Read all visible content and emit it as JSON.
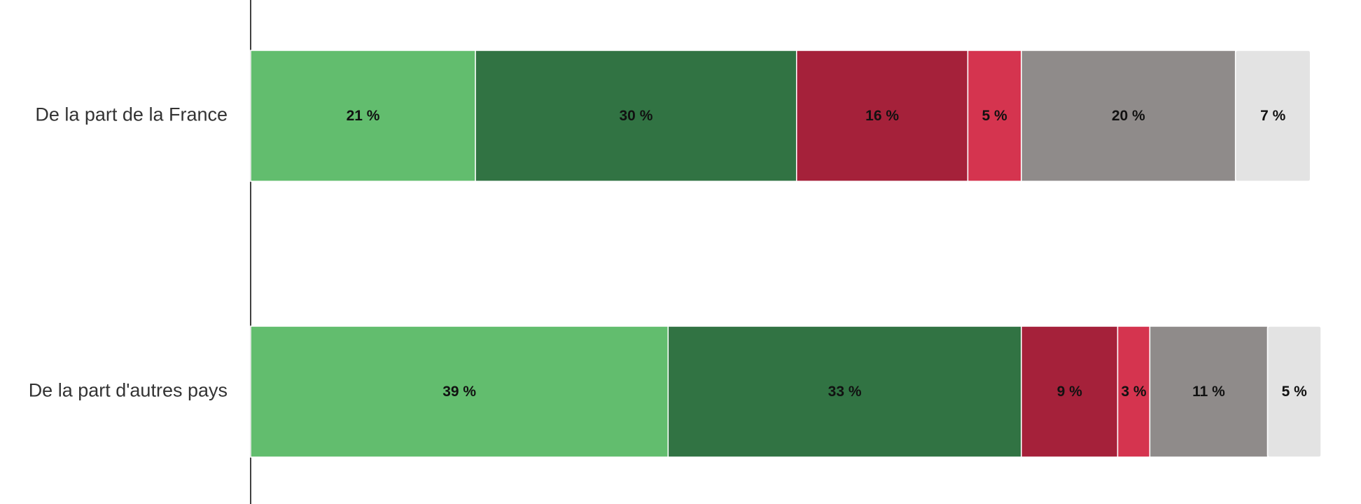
{
  "chart_data": {
    "type": "stacked-bar-horizontal",
    "categories": [
      "De la part de la France",
      "De la part d'autres pays"
    ],
    "series": [
      {
        "color": "#62bd6e",
        "values": [
          21,
          39
        ],
        "value_labels": [
          "21 %",
          "39 %"
        ]
      },
      {
        "color": "#317343",
        "values": [
          30,
          33
        ],
        "value_labels": [
          "30 %",
          "33 %"
        ]
      },
      {
        "color": "#a5213a",
        "values": [
          16,
          9
        ],
        "value_labels": [
          "16 %",
          "9 %"
        ]
      },
      {
        "color": "#d5344f",
        "values": [
          5,
          3
        ],
        "value_labels": [
          "5 %",
          "3 %"
        ]
      },
      {
        "color": "#8f8b8a",
        "values": [
          20,
          11
        ],
        "value_labels": [
          "20 %",
          "11 %"
        ]
      },
      {
        "color": "#e3e3e3",
        "values": [
          7,
          5
        ],
        "value_labels": [
          "7 %",
          "5 %"
        ]
      }
    ],
    "xlim": [
      0,
      100
    ]
  }
}
